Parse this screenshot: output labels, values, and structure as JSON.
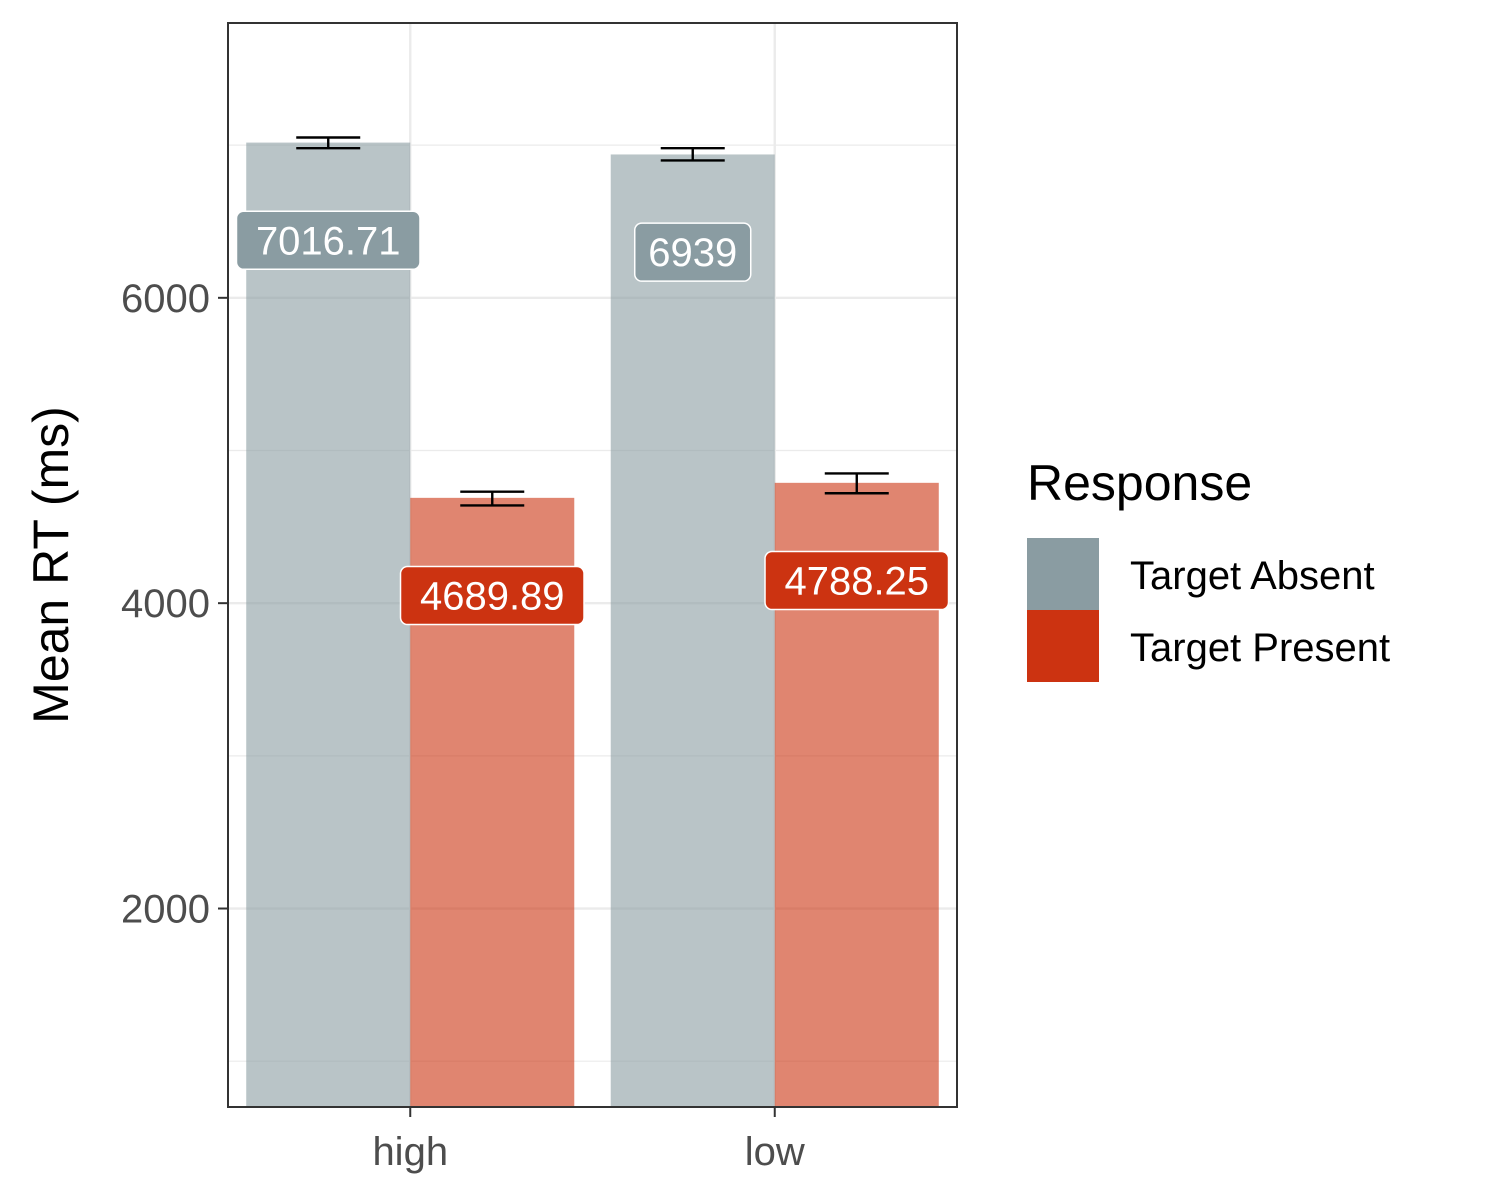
{
  "chart_data": {
    "type": "bar",
    "title": "",
    "xlabel": "",
    "ylabel": "Mean RT (ms)",
    "categories": [
      "high",
      "low"
    ],
    "ylim": [
      700,
      7800
    ],
    "yticks": [
      2000,
      4000,
      6000
    ],
    "grid": true,
    "legend": {
      "title": "Response",
      "placement": "right"
    },
    "series": [
      {
        "name": "Target Absent",
        "color": "#8a9ca2",
        "values": [
          7016.71,
          6939
        ],
        "labels": [
          "7016.71",
          "6939"
        ],
        "error_low": [
          6980,
          6900
        ],
        "error_high": [
          7050,
          6980
        ]
      },
      {
        "name": "Target Present",
        "color": "#cc3311",
        "values": [
          4689.89,
          4788.25
        ],
        "labels": [
          "4689.89",
          "4788.25"
        ],
        "error_low": [
          4640,
          4720
        ],
        "error_high": [
          4730,
          4850
        ]
      }
    ]
  }
}
